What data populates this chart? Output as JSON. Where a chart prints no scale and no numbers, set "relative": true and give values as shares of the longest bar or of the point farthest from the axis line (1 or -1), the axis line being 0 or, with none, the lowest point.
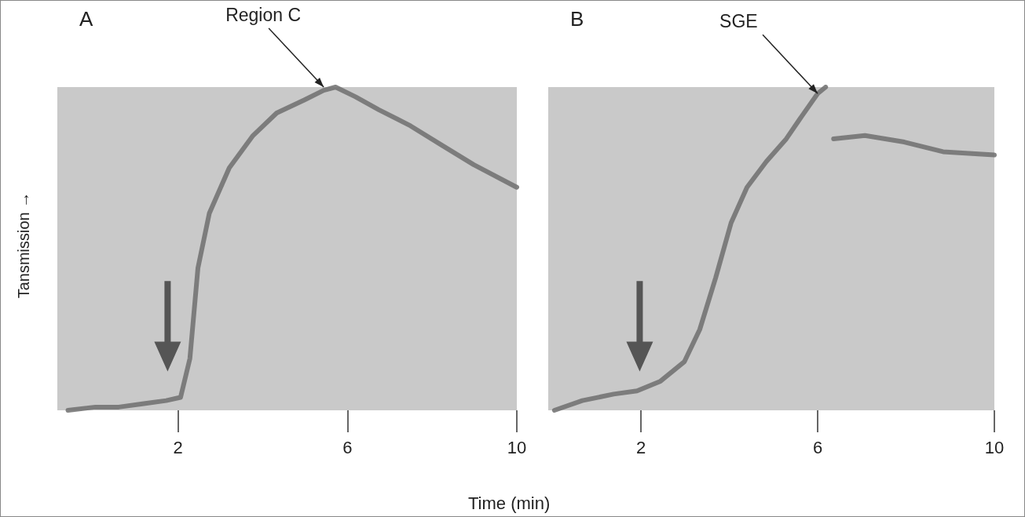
{
  "chart_data": [
    {
      "type": "line",
      "title": "A",
      "xlabel": "Time (min)",
      "ylabel": "Tansmission →",
      "relative": true,
      "xlim": [
        -0.85,
        10
      ],
      "xticks": [
        2,
        6,
        10
      ],
      "tick_labels": "x",
      "grid": false,
      "annotations": [
        {
          "text": "Region C",
          "x": 5.44,
          "y": 1
        }
      ],
      "series": [
        {
          "color": "#6e6e6e",
          "x": [
            -0.6,
            0.05,
            0.6,
            1.16,
            1.72,
            2.06,
            2.28,
            2.47,
            2.74,
            3.21,
            3.77,
            4.33,
            4.98,
            5.44,
            5.72,
            6.19,
            6.74,
            7.49,
            8.23,
            8.98,
            10.0
          ],
          "values": [
            0,
            0.01,
            0.01,
            0.02,
            0.03,
            0.04,
            0.16,
            0.44,
            0.61,
            0.75,
            0.85,
            0.92,
            0.96,
            0.99,
            1,
            0.97,
            0.93,
            0.88,
            0.82,
            0.76,
            0.69
          ]
        }
      ]
    },
    {
      "type": "line",
      "title": "B",
      "relative": true,
      "xlim": [
        -0.1,
        10
      ],
      "xticks": [
        2,
        6,
        10
      ],
      "tick_labels": "x",
      "grid": false,
      "annotations": [
        {
          "text": "SGE",
          "x": 6.0,
          "y": 0.98
        }
      ],
      "series": [
        {
          "color": "#6e6e6e",
          "x": [
            0.04,
            0.67,
            1.38,
            1.91,
            2.44,
            2.98,
            3.33,
            3.69,
            4.04,
            4.4,
            4.84,
            5.29,
            5.64,
            6.0,
            6.18,
            6.27,
            6.36,
            7.07,
            7.96,
            8.84,
            10.0
          ],
          "values": [
            0,
            0.03,
            0.05,
            0.06,
            0.09,
            0.15,
            0.25,
            0.41,
            0.58,
            0.69,
            0.77,
            0.84,
            0.91,
            0.98,
            1,
            null,
            0.84,
            0.85,
            0.83,
            0.8,
            0.79
          ]
        }
      ]
    }
  ]
}
